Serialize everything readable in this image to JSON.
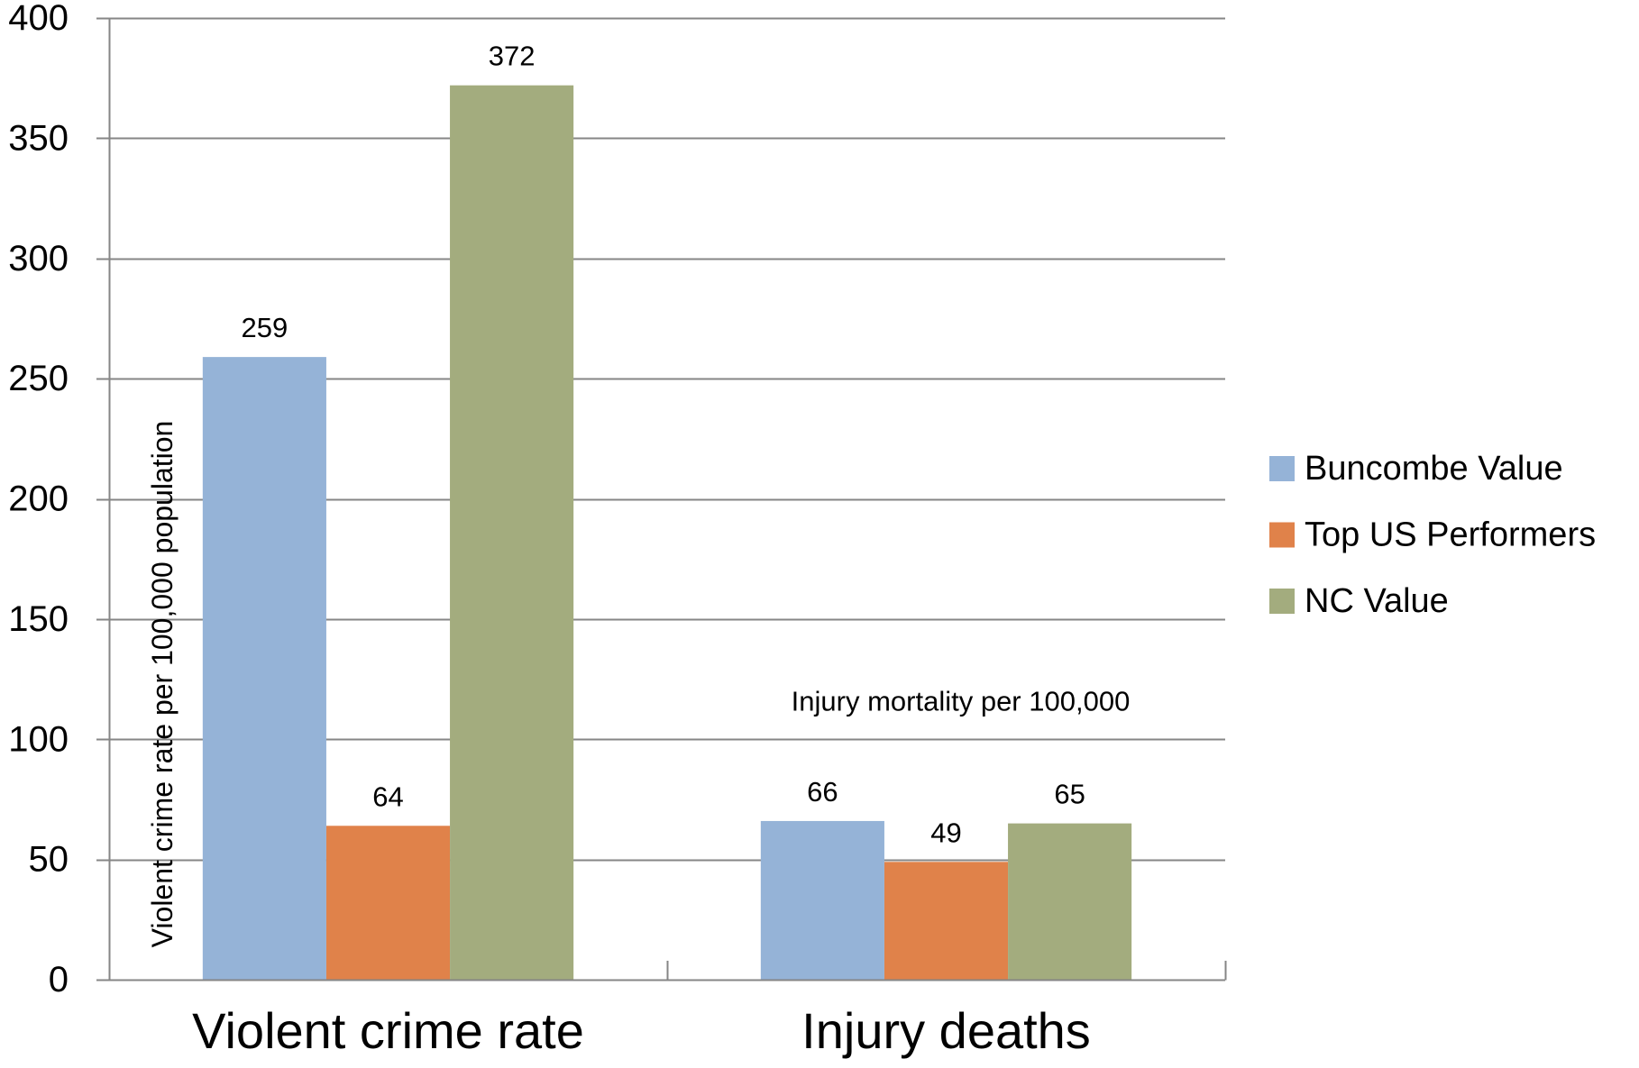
{
  "chart_data": {
    "type": "bar",
    "categories": [
      "Violent crime rate",
      "Injury deaths"
    ],
    "series": [
      {
        "name": "Buncombe Value",
        "values": [
          259,
          66
        ],
        "color": "#95B3D7"
      },
      {
        "name": "Top US Performers",
        "values": [
          64,
          49
        ],
        "color": "#E0824A"
      },
      {
        "name": "NC Value",
        "values": [
          372,
          65
        ],
        "color": "#A3AC7E"
      }
    ],
    "ylabel": "Violent crime rate per 100,000 population",
    "ylim": [
      0,
      400
    ],
    "yticks": [
      0,
      50,
      100,
      150,
      200,
      250,
      300,
      350,
      400
    ],
    "grid": "horizontal",
    "legend": "right",
    "data_labels": true,
    "annotations": [
      {
        "text": "Injury mortality per 100,000",
        "category": "Injury deaths"
      }
    ]
  }
}
